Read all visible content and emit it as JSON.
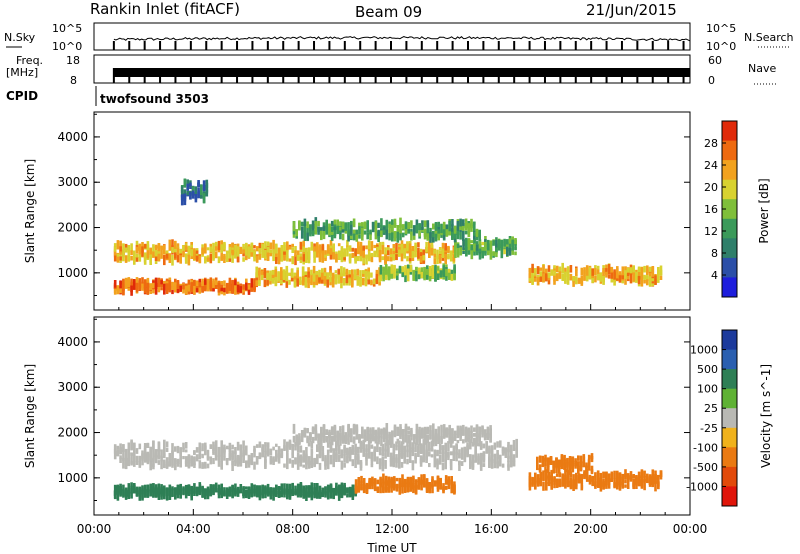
{
  "header": {
    "station": "Rankin Inlet (fitACF)",
    "beam": "Beam 09",
    "date": "21/Jun/2015"
  },
  "top_panels": {
    "nsky_label": "N.Sky",
    "nsearch_label": "N.Search",
    "noise_ticks": [
      "10^5",
      "10^0"
    ],
    "freq_label": "Freq.",
    "freq_unit": "[MHz]",
    "freq_ticks": [
      "18",
      "8"
    ],
    "nave_label": "Nave",
    "nave_ticks": [
      "60",
      "0"
    ],
    "cpid_label": "CPID",
    "cpid_value": "twofsound 3503"
  },
  "colors": {
    "power": [
      "#1e1edc",
      "#2b4fa8",
      "#2f7f6a",
      "#3b9a5a",
      "#7fbf3a",
      "#d8d230",
      "#f2a21e",
      "#ee6a10",
      "#e02a0a"
    ],
    "velocity": [
      "#1c3a9c",
      "#2a5fb0",
      "#2e7f55",
      "#5fb234",
      "#b9b9b4",
      "#f0b21c",
      "#ea7a12",
      "#e24a0a",
      "#e0150a"
    ]
  },
  "chart_data": [
    {
      "type": "heatmap",
      "name": "power",
      "xlabel": "",
      "ylabel": "Slant Range [km]",
      "x_ticks": [
        "00:00",
        "04:00",
        "08:00",
        "12:00",
        "16:00",
        "20:00",
        "00:00"
      ],
      "xlim_hours": [
        0,
        24
      ],
      "y_ticks": [
        1000,
        2000,
        3000,
        4000
      ],
      "ylim": [
        180,
        4550
      ],
      "colorbar_label": "Power [dB]",
      "colorbar_ticks": [
        4,
        8,
        12,
        16,
        20,
        24,
        28
      ],
      "colorbar_range": [
        0,
        32
      ],
      "bands": [
        {
          "start": 0.8,
          "end": 14.5,
          "range": 1450,
          "width": 350,
          "value": 22
        },
        {
          "start": 14.5,
          "end": 17.0,
          "range": 1550,
          "width": 320,
          "value": 14
        },
        {
          "start": 0.8,
          "end": 6.5,
          "range": 700,
          "width": 200,
          "value": 26
        },
        {
          "start": 6.5,
          "end": 11.5,
          "range": 900,
          "width": 300,
          "value": 22
        },
        {
          "start": 11.5,
          "end": 14.5,
          "range": 1000,
          "width": 200,
          "value": 16
        },
        {
          "start": 8.0,
          "end": 15.5,
          "range": 1950,
          "width": 350,
          "value": 13
        },
        {
          "start": 17.5,
          "end": 22.8,
          "range": 950,
          "width": 300,
          "value": 22
        },
        {
          "start": 3.5,
          "end": 4.5,
          "range": 2800,
          "width": 400,
          "value": 8
        }
      ]
    },
    {
      "type": "heatmap",
      "name": "velocity",
      "xlabel": "Time UT",
      "ylabel": "Slant Range [km]",
      "x_ticks": [
        "00:00",
        "04:00",
        "08:00",
        "12:00",
        "16:00",
        "20:00",
        "00:00"
      ],
      "xlim_hours": [
        0,
        24
      ],
      "y_ticks": [
        1000,
        2000,
        3000,
        4000
      ],
      "ylim": [
        180,
        4550
      ],
      "colorbar_label": "Velocity [m s^-1]",
      "colorbar_ticks": [
        "1000",
        "500",
        "100",
        "25",
        "-25",
        "-100",
        "-500",
        "-1000"
      ],
      "bands": [
        {
          "start": 0.8,
          "end": 17.0,
          "range": 1500,
          "width": 500,
          "value": 0
        },
        {
          "start": 8.0,
          "end": 16.0,
          "range": 1950,
          "width": 300,
          "value": 0
        },
        {
          "start": 0.8,
          "end": 10.5,
          "range": 700,
          "width": 200,
          "value": 120
        },
        {
          "start": 10.5,
          "end": 14.5,
          "range": 850,
          "width": 250,
          "value": -150
        },
        {
          "start": 17.5,
          "end": 22.8,
          "range": 950,
          "width": 300,
          "value": -180
        },
        {
          "start": 17.8,
          "end": 20.0,
          "range": 1300,
          "width": 300,
          "value": -250
        }
      ]
    }
  ]
}
